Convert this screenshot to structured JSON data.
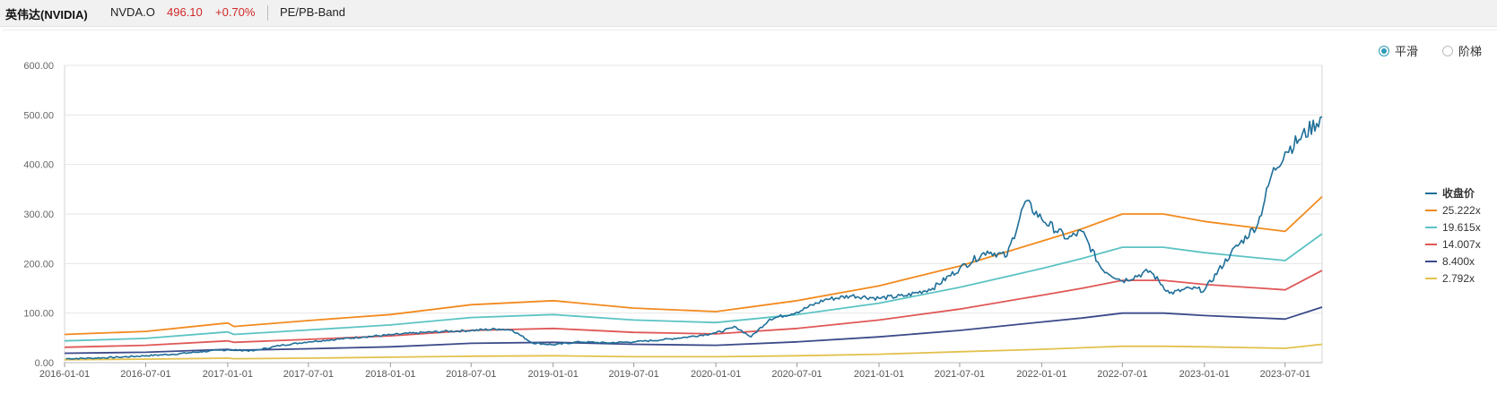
{
  "header": {
    "name": "英伟达(NVIDIA)",
    "code": "NVDA.O",
    "price": "496.10",
    "change": "+0.70%",
    "tab": "PE/PB-Band"
  },
  "modes": [
    {
      "label": "平滑",
      "selected": true
    },
    {
      "label": "阶梯",
      "selected": false
    }
  ],
  "colors": {
    "close": "#1f6f99",
    "band1": "#f28a1e",
    "band2": "#5cc3c3",
    "band3": "#e05757",
    "band4": "#3c4a8a",
    "band5": "#e2c14d",
    "grid": "#e6e6e6",
    "axis": "#999999"
  },
  "chart_data": {
    "type": "line",
    "title": "",
    "xlabel": "",
    "ylabel": "",
    "ylim": [
      0,
      600
    ],
    "yticks": [
      "0.00",
      "100.00",
      "200.00",
      "300.00",
      "400.00",
      "500.00",
      "600.00"
    ],
    "xticks": [
      "2016-01-01",
      "2016-07-01",
      "2017-01-01",
      "2017-07-01",
      "2018-01-01",
      "2018-07-01",
      "2019-01-01",
      "2019-07-01",
      "2020-01-01",
      "2020-07-01",
      "2021-01-01",
      "2021-07-01",
      "2022-01-01",
      "2022-07-01",
      "2023-01-01",
      "2023-07-01"
    ],
    "xrange": [
      "2016-01-01",
      "2023-09-22"
    ],
    "grid": true,
    "legend_position": "right",
    "series": [
      {
        "name": "收盘价",
        "color": "#1f6f99",
        "x": [
          "2016-01-04",
          "2016-03-01",
          "2016-05-01",
          "2016-07-01",
          "2016-09-01",
          "2016-11-01",
          "2017-01-01",
          "2017-03-01",
          "2017-05-01",
          "2017-07-01",
          "2017-09-01",
          "2017-11-01",
          "2018-01-01",
          "2018-03-01",
          "2018-05-01",
          "2018-07-01",
          "2018-09-01",
          "2018-10-01",
          "2018-11-15",
          "2019-01-01",
          "2019-03-01",
          "2019-05-01",
          "2019-07-01",
          "2019-09-01",
          "2019-11-01",
          "2020-01-01",
          "2020-02-15",
          "2020-03-20",
          "2020-05-01",
          "2020-07-01",
          "2020-09-01",
          "2020-11-01",
          "2021-01-01",
          "2021-03-01",
          "2021-05-01",
          "2021-07-01",
          "2021-09-01",
          "2021-10-15",
          "2021-11-25",
          "2022-01-01",
          "2022-03-01",
          "2022-04-01",
          "2022-05-15",
          "2022-07-01",
          "2022-09-01",
          "2022-10-15",
          "2022-12-01",
          "2023-01-01",
          "2023-03-01",
          "2023-05-01",
          "2023-06-01",
          "2023-07-01",
          "2023-08-01",
          "2023-09-22"
        ],
        "values": [
          8,
          9,
          11,
          14,
          17,
          22,
          26,
          24,
          35,
          42,
          47,
          52,
          56,
          60,
          63,
          65,
          68,
          66,
          40,
          36,
          42,
          40,
          42,
          46,
          52,
          60,
          72,
          52,
          88,
          102,
          127,
          135,
          130,
          135,
          150,
          190,
          225,
          215,
          325,
          290,
          250,
          265,
          190,
          165,
          185,
          140,
          150,
          146,
          220,
          280,
          380,
          425,
          450,
          496
        ]
      },
      {
        "name": "25.222x",
        "color": "#f28a1e",
        "x": [
          "2016-01-01",
          "2016-07-01",
          "2017-01-01",
          "2017-01-15",
          "2017-07-01",
          "2018-01-01",
          "2018-07-01",
          "2019-01-01",
          "2019-07-01",
          "2020-01-01",
          "2020-07-01",
          "2021-01-01",
          "2021-07-01",
          "2022-01-01",
          "2022-04-01",
          "2022-07-01",
          "2022-10-01",
          "2023-01-01",
          "2023-07-01",
          "2023-09-22"
        ],
        "values": [
          57,
          63,
          80,
          73,
          85,
          97,
          117,
          125,
          110,
          103,
          125,
          155,
          195,
          245,
          270,
          300,
          300,
          285,
          265,
          335
        ]
      },
      {
        "name": "19.615x",
        "color": "#5cc3c3",
        "x": [
          "2016-01-01",
          "2016-07-01",
          "2017-01-01",
          "2017-01-15",
          "2017-07-01",
          "2018-01-01",
          "2018-07-01",
          "2019-01-01",
          "2019-07-01",
          "2020-01-01",
          "2020-07-01",
          "2021-01-01",
          "2021-07-01",
          "2022-01-01",
          "2022-04-01",
          "2022-07-01",
          "2022-10-01",
          "2023-01-01",
          "2023-07-01",
          "2023-09-22"
        ],
        "values": [
          44,
          49,
          62,
          57,
          66,
          76,
          91,
          97,
          86,
          81,
          97,
          120,
          152,
          190,
          210,
          233,
          233,
          222,
          206,
          260
        ]
      },
      {
        "name": "14.007x",
        "color": "#e05757",
        "x": [
          "2016-01-01",
          "2016-07-01",
          "2017-01-01",
          "2017-01-15",
          "2017-07-01",
          "2018-01-01",
          "2018-07-01",
          "2019-01-01",
          "2019-07-01",
          "2020-01-01",
          "2020-07-01",
          "2021-01-01",
          "2021-07-01",
          "2022-01-01",
          "2022-04-01",
          "2022-07-01",
          "2022-10-01",
          "2023-01-01",
          "2023-07-01",
          "2023-09-22"
        ],
        "values": [
          31,
          35,
          44,
          41,
          47,
          54,
          65,
          69,
          61,
          58,
          69,
          86,
          108,
          136,
          150,
          166,
          166,
          158,
          147,
          186
        ]
      },
      {
        "name": "8.400x",
        "color": "#3c4a8a",
        "x": [
          "2016-01-01",
          "2016-07-01",
          "2017-01-01",
          "2017-01-15",
          "2017-07-01",
          "2018-01-01",
          "2018-07-01",
          "2019-01-01",
          "2019-07-01",
          "2020-01-01",
          "2020-07-01",
          "2021-01-01",
          "2021-07-01",
          "2022-01-01",
          "2022-04-01",
          "2022-07-01",
          "2022-10-01",
          "2023-01-01",
          "2023-07-01",
          "2023-09-22"
        ],
        "values": [
          19,
          21,
          27,
          25,
          28,
          32,
          39,
          41,
          37,
          35,
          42,
          52,
          65,
          82,
          90,
          100,
          100,
          95,
          88,
          112
        ]
      },
      {
        "name": "2.792x",
        "color": "#e2c14d",
        "x": [
          "2016-01-01",
          "2016-07-01",
          "2017-01-01",
          "2017-01-15",
          "2017-07-01",
          "2018-01-01",
          "2018-07-01",
          "2019-01-01",
          "2019-07-01",
          "2020-01-01",
          "2020-07-01",
          "2021-01-01",
          "2021-07-01",
          "2022-01-01",
          "2022-04-01",
          "2022-07-01",
          "2022-10-01",
          "2023-01-01",
          "2023-07-01",
          "2023-09-22"
        ],
        "values": [
          6,
          7,
          9,
          8,
          9,
          11,
          13,
          14,
          12,
          12,
          14,
          17,
          22,
          27,
          30,
          33,
          33,
          32,
          29,
          37
        ]
      }
    ]
  }
}
